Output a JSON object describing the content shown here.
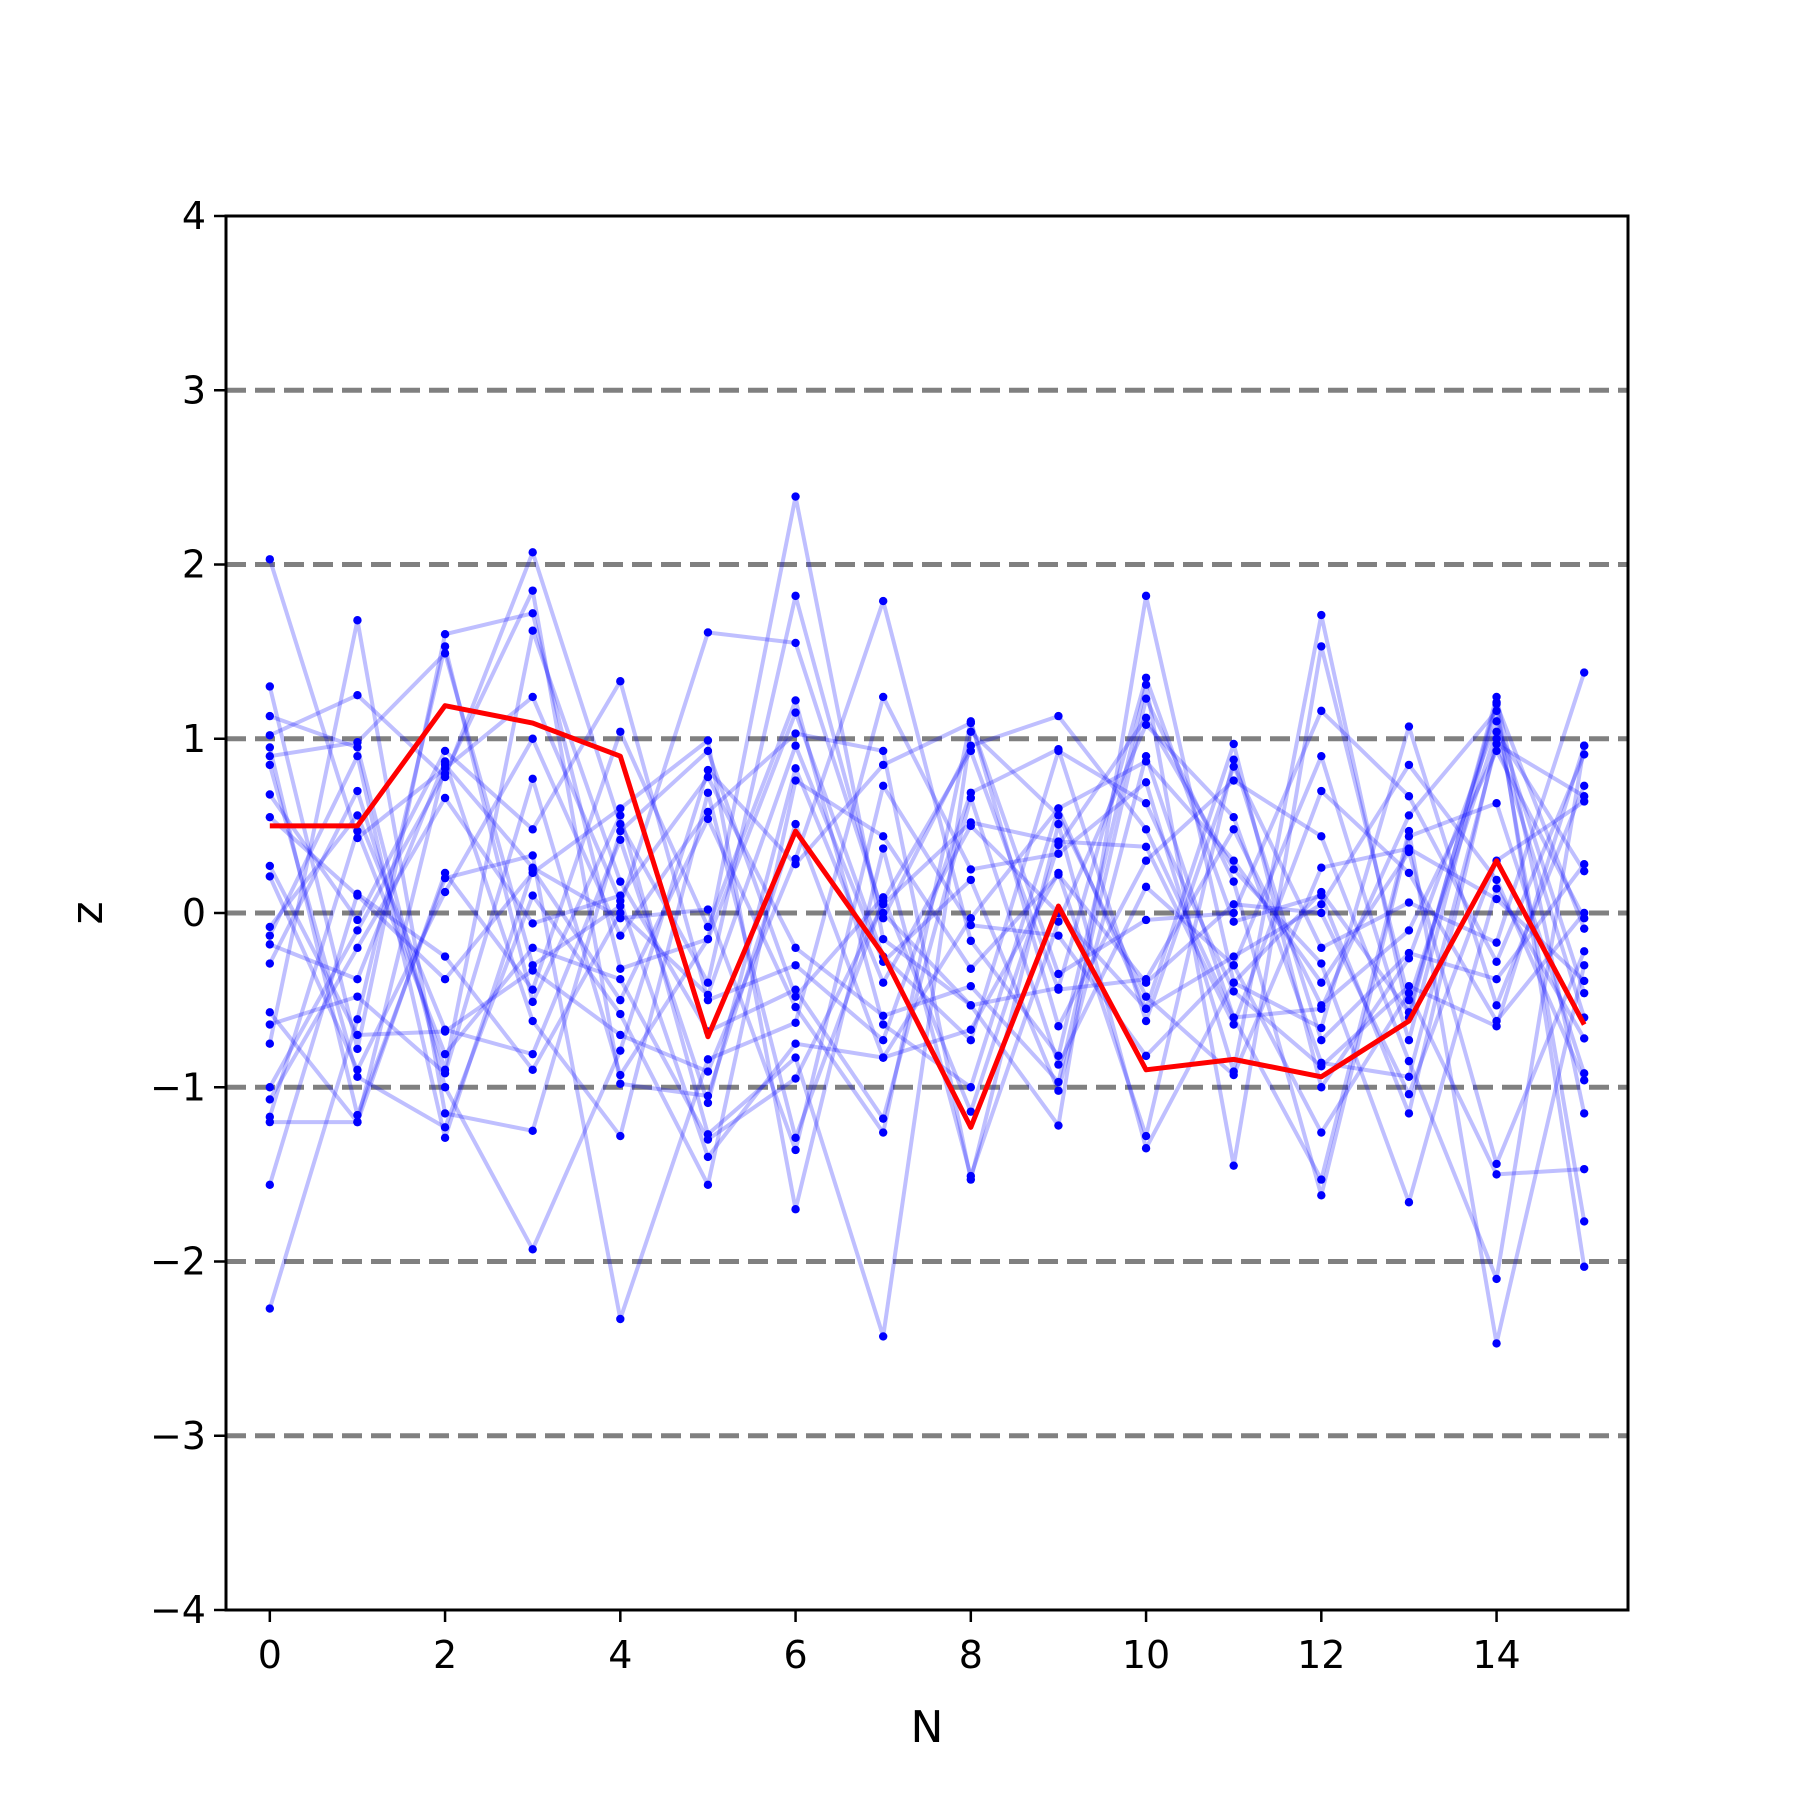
{
  "chart_data": {
    "type": "line",
    "title": "",
    "xlabel": "N",
    "ylabel": "z",
    "xlim": [
      -0.5,
      15.5
    ],
    "ylim": [
      -4,
      4
    ],
    "xticks": [
      0,
      2,
      4,
      6,
      8,
      10,
      12,
      14
    ],
    "xtick_labels": [
      "0",
      "2",
      "4",
      "6",
      "8",
      "10",
      "12",
      "14"
    ],
    "yticks": [
      -4,
      -3,
      -2,
      -1,
      0,
      1,
      2,
      3,
      4
    ],
    "ytick_labels": [
      "−4",
      "−3",
      "−2",
      "−1",
      "0",
      "1",
      "2",
      "3",
      "4"
    ],
    "reference_lines_y": [
      -3,
      -2,
      -1,
      0,
      1,
      2,
      3
    ],
    "reference_line_color": "#808080",
    "grid": false,
    "legend": "none",
    "x": [
      0,
      1,
      2,
      3,
      4,
      5,
      6,
      7,
      8,
      9,
      10,
      11,
      12,
      13,
      14,
      15
    ],
    "background_series_color": "#0000ff",
    "background_series_opacity": 0.25,
    "background_series": [
      [
        2.03,
        0.43,
        0.83,
        1.24,
        0.07,
        -1.4,
        -0.75,
        -0.83,
        -0.03,
        0.6,
        0.87,
        0.3,
        -0.4,
        0.35,
        -1.44,
        -0.22
      ],
      [
        1.3,
        -0.78,
        1.6,
        1.72,
        -0.32,
        -0.15,
        2.39,
        -0.15,
        -0.53,
        -1.22,
        1.82,
        -0.4,
        0.12,
        -0.57,
        1.21,
        -2.03
      ],
      [
        1.13,
        0.95,
        -1.0,
        -1.93,
        -0.79,
        0.82,
        0.28,
        0.85,
        1.09,
        -0.35,
        -0.04,
        0.0,
        1.16,
        0.67,
        -0.28,
        0.91
      ],
      [
        1.02,
        1.25,
        0.78,
        2.07,
        0.51,
        -0.4,
        1.82,
        -0.03,
        0.96,
        1.13,
        0.48,
        -0.6,
        -1.53,
        0.47,
        -2.47,
        -0.3
      ],
      [
        0.95,
        -1.16,
        0.2,
        0.33,
        -2.33,
        -0.84,
        -0.63,
        1.24,
        0.25,
        0.34,
        0.75,
        -0.91,
        1.71,
        -0.6,
        1.24,
        -1.15
      ],
      [
        0.9,
        0.98,
        1.49,
        -0.3,
        0.04,
        1.61,
        1.55,
        0.0,
        -0.53,
        -0.43,
        1.35,
        -0.05,
        0.1,
        -1.15,
        1.0,
        -0.6
      ],
      [
        0.68,
        -0.04,
        0.93,
        0.48,
        1.33,
        -0.5,
        -0.3,
        -0.73,
        0.69,
        0.94,
        -0.62,
        0.84,
        -0.2,
        0.06,
        -0.17,
        1.38
      ],
      [
        0.55,
        0.1,
        -0.38,
        0.23,
        0.6,
        0.99,
        -1.7,
        0.37,
        -1.51,
        -0.05,
        1.08,
        0.55,
        -0.86,
        -0.94,
        0.97,
        0.67
      ],
      [
        0.27,
        -0.7,
        -0.68,
        -0.33,
        -0.7,
        -0.91,
        0.31,
        1.79,
        -0.16,
        -0.82,
        1.31,
        -1.45,
        1.53,
        -0.5,
        1.04,
        0.24
      ],
      [
        0.21,
        -0.9,
        0.12,
        1.0,
        -0.13,
        0.58,
        1.03,
        0.93,
        -1.53,
        0.51,
        -1.35,
        -0.4,
        -0.66,
        1.07,
        -0.53,
        0.73
      ],
      [
        -0.08,
        0.56,
        -0.67,
        -0.81,
        0.42,
        -1.09,
        0.83,
        -0.4,
        0.5,
        0.0,
        -0.55,
        0.97,
        -1.0,
        -0.26,
        1.1,
        -0.46
      ],
      [
        -0.13,
        0.9,
        -1.29,
        0.25,
        -0.5,
        0.54,
        -0.54,
        -1.26,
        1.1,
        -0.65,
        0.3,
        0.76,
        0.44,
        -0.85,
        -2.1,
        0.96
      ],
      [
        -0.18,
        -0.38,
        0.87,
        -0.62,
        -1.28,
        0.69,
        -1.29,
        0.07,
        0.93,
        -0.44,
        -0.38,
        0.48,
        -0.53,
        -0.1,
        0.93,
        -0.03
      ],
      [
        -0.57,
        -1.2,
        0.23,
        -0.44,
        1.04,
        -0.08,
        1.22,
        -0.64,
        -1.0,
        0.6,
        -0.55,
        -0.25,
        0.05,
        0.85,
        0.19,
        -0.96
      ],
      [
        -0.64,
        -0.48,
        -0.92,
        0.77,
        -0.93,
        -0.15,
        1.15,
        -0.25,
        -0.73,
        0.93,
        0.63,
        -0.45,
        -0.88,
        -0.42,
        -0.65,
        0.96
      ],
      [
        -0.75,
        1.68,
        -1.15,
        -1.25,
        0.47,
        0.93,
        -0.48,
        0.09,
        -1.14,
        0.39,
        1.12,
        0.25,
        -0.29,
        -1.66,
        0.14,
        -0.72
      ],
      [
        -1.0,
        -0.1,
        0.8,
        1.85,
        -0.98,
        -1.05,
        0.51,
        -0.83,
        -0.67,
        0.23,
        -1.28,
        0.88,
        -0.73,
        -0.23,
        -0.38,
        0.28
      ],
      [
        -1.07,
        -0.2,
        0.66,
        -0.06,
        0.1,
        0.78,
        -0.2,
        -0.59,
        -0.42,
        -0.97,
        1.23,
        0.18,
        -1.62,
        0.44,
        0.63,
        -0.92
      ],
      [
        -1.17,
        0.47,
        -0.81,
        -0.2,
        -0.38,
        -1.3,
        -0.95,
        0.05,
        0.52,
        0.41,
        0.38,
        -0.64,
        0.7,
        0.23,
        -0.62,
        0.0
      ],
      [
        -1.2,
        -1.2,
        0.85,
        0.26,
        -0.03,
        0.02,
        -1.36,
        0.73,
        -0.07,
        -0.13,
        -0.82,
        -0.3,
        -1.26,
        -0.46,
        -1.5,
        -1.47
      ],
      [
        -1.56,
        0.11,
        -0.25,
        -0.9,
        0.0,
        -0.47,
        0.96,
        -0.28,
        0.19,
        -1.02,
        0.9,
        -0.6,
        -0.55,
        0.56,
        1.16,
        -1.77
      ],
      [
        -2.27,
        -0.61,
        1.53,
        -0.51,
        0.56,
        -1.27,
        -0.83,
        -2.43,
        1.04,
        0.56,
        -0.48,
        -0.93,
        0.26,
        0.37,
        0.08,
        -0.39
      ],
      [
        0.85,
        -0.94,
        -1.23,
        0.1,
        -0.58,
        -1.56,
        0.76,
        0.44,
        -0.32,
        0.22,
        -0.4,
        0.05,
        0.0,
        -1.04,
        0.3,
        0.64
      ],
      [
        -0.29,
        0.7,
        -0.9,
        1.62,
        0.18,
        -0.68,
        -0.44,
        -1.18,
        0.66,
        -0.87,
        0.15,
        -0.3,
        0.9,
        -0.73,
        1.2,
        -0.09
      ]
    ],
    "highlight_series": {
      "color": "#ff0000",
      "values": [
        0.5,
        0.5,
        1.19,
        1.09,
        0.9,
        -0.71,
        0.47,
        -0.24,
        -1.23,
        0.04,
        -0.9,
        -0.84,
        -0.94,
        -0.62,
        0.3,
        -0.64
      ]
    }
  }
}
